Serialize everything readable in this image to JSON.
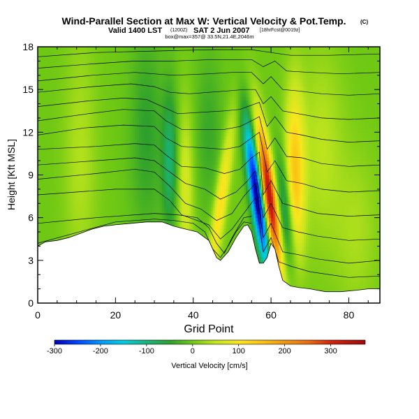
{
  "chart_data": {
    "type": "heatmap",
    "title": "Wind-Parallel Section at Max W: Vertical Velocity & Pot.Temp.",
    "title_badge": "(C)",
    "subtitle_main": "Valid 1400 LST",
    "subtitle_small1": "(1200Z)",
    "subtitle_date": "SAT 2 Jun 2007",
    "subtitle_small2": "[18hrFcst@0019z]",
    "subtitle3": "box@max=357@ 33.5N,21.4E,2046m",
    "xlabel": "Grid Point",
    "ylabel": "Height [Kft MSL]",
    "xlim": [
      0,
      88
    ],
    "ylim": [
      0,
      18
    ],
    "xticks": [
      0,
      20,
      40,
      60,
      80
    ],
    "xticklabels": [
      "0",
      "20",
      "40",
      "60",
      "80"
    ],
    "yticks": [
      0,
      3,
      6,
      9,
      12,
      15,
      18
    ],
    "yticklabels": [
      "0",
      "3",
      "6",
      "9",
      "12",
      "15",
      "18"
    ],
    "colorbar": {
      "label": "Vertical Velocity [cm/s]",
      "range": [
        -300,
        375
      ],
      "ticks": [
        -300,
        -200,
        -100,
        0,
        100,
        200,
        300
      ],
      "ticklabels": [
        "-300",
        "-200",
        "-100",
        "0",
        "100",
        "200",
        "300"
      ],
      "stops": [
        {
          "v": -300,
          "c": "#0000b4"
        },
        {
          "v": -250,
          "c": "#0046ff"
        },
        {
          "v": -200,
          "c": "#0096ff"
        },
        {
          "v": -150,
          "c": "#00cddc"
        },
        {
          "v": -100,
          "c": "#19b47d"
        },
        {
          "v": -50,
          "c": "#2da02d"
        },
        {
          "v": 0,
          "c": "#6ec814"
        },
        {
          "v": 50,
          "c": "#c3e61e"
        },
        {
          "v": 100,
          "c": "#fae61e"
        },
        {
          "v": 150,
          "c": "#fac314"
        },
        {
          "v": 200,
          "c": "#f0960f"
        },
        {
          "v": 250,
          "c": "#eb6e0f"
        },
        {
          "v": 300,
          "c": "#d2230f"
        },
        {
          "v": 375,
          "c": "#a00a0a"
        }
      ]
    },
    "terrain": [
      [
        0,
        4.0
      ],
      [
        2,
        4.3
      ],
      [
        5,
        4.4
      ],
      [
        8,
        4.6
      ],
      [
        11,
        4.9
      ],
      [
        14,
        5.2
      ],
      [
        17,
        5.4
      ],
      [
        20,
        5.5
      ],
      [
        24,
        5.6
      ],
      [
        28,
        5.7
      ],
      [
        32,
        5.7
      ],
      [
        35,
        5.4
      ],
      [
        38,
        5.2
      ],
      [
        41,
        5.0
      ],
      [
        44,
        4.4
      ],
      [
        46,
        3.2
      ],
      [
        47,
        3.0
      ],
      [
        49,
        3.6
      ],
      [
        51,
        4.6
      ],
      [
        53,
        5.4
      ],
      [
        54,
        5.5
      ],
      [
        55,
        5.0
      ],
      [
        56,
        3.8
      ],
      [
        57,
        2.8
      ],
      [
        58,
        2.8
      ],
      [
        59,
        3.2
      ],
      [
        60,
        4.2
      ],
      [
        61,
        3.8
      ],
      [
        62,
        2.6
      ],
      [
        63,
        1.6
      ],
      [
        65,
        1.2
      ],
      [
        67,
        1.1
      ],
      [
        70,
        1.0
      ],
      [
        74,
        0.8
      ],
      [
        78,
        0.8
      ],
      [
        82,
        0.9
      ],
      [
        85,
        1.0
      ],
      [
        88,
        1.0
      ]
    ],
    "w_features": [
      {
        "x": 56.5,
        "y": 7.5,
        "sx": 1.3,
        "sy": 3.5,
        "w": -330,
        "tilt": -0.5
      },
      {
        "x": 59.5,
        "y": 7.5,
        "sx": 1.3,
        "sy": 3.5,
        "w": 360,
        "tilt": -0.5
      },
      {
        "x": 66,
        "y": 8.5,
        "sx": 1.8,
        "sy": 4.5,
        "w": 150,
        "tilt": 0
      },
      {
        "x": 64,
        "y": 6,
        "sx": 1.5,
        "sy": 3,
        "w": -130,
        "tilt": -0.3
      },
      {
        "x": 47,
        "y": 7,
        "sx": 1.2,
        "sy": 4,
        "w": 120,
        "tilt": 0.5
      },
      {
        "x": 34,
        "y": 10,
        "sx": 1.4,
        "sy": 3.5,
        "w": -90,
        "tilt": 0
      },
      {
        "x": 38,
        "y": 8,
        "sx": 1.5,
        "sy": 4,
        "w": 70,
        "tilt": 0
      },
      {
        "x": 11,
        "y": 10,
        "sx": 3,
        "sy": 6,
        "w": 40,
        "tilt": 0
      },
      {
        "x": 28,
        "y": 12,
        "sx": 3,
        "sy": 5,
        "w": -50,
        "tilt": 0
      },
      {
        "x": 73,
        "y": 11,
        "sx": 4,
        "sy": 5,
        "w": 45,
        "tilt": 0
      },
      {
        "x": 82,
        "y": 5,
        "sx": 4,
        "sy": 4,
        "w": 35,
        "tilt": 0
      },
      {
        "x": 44,
        "y": 12,
        "sx": 2.5,
        "sy": 4,
        "w": -40,
        "tilt": 0
      }
    ],
    "theta_isolines": [
      [
        [
          0,
          4.2
        ],
        [
          20,
          5.7
        ],
        [
          30,
          5.9
        ],
        [
          35,
          5.8
        ],
        [
          40,
          5.6
        ],
        [
          43,
          5.0
        ],
        [
          45,
          3.8
        ],
        [
          47,
          3.2
        ],
        [
          49,
          4.0
        ],
        [
          51,
          5.0
        ],
        [
          53,
          5.7
        ],
        [
          55,
          5.6
        ]
      ],
      [
        [
          0,
          5.6
        ],
        [
          15,
          6.0
        ],
        [
          30,
          6.3
        ],
        [
          36,
          6.2
        ],
        [
          41,
          6.0
        ],
        [
          44,
          5.3
        ],
        [
          46,
          4.2
        ],
        [
          48,
          3.5
        ],
        [
          50,
          4.6
        ],
        [
          53,
          6.0
        ],
        [
          55,
          6.1
        ]
      ],
      [
        [
          0,
          7.6
        ],
        [
          20,
          8.0
        ],
        [
          30,
          8.0
        ],
        [
          34,
          7.2
        ],
        [
          37,
          6.2
        ],
        [
          41,
          5.8
        ],
        [
          44,
          5.5
        ],
        [
          47,
          4.5
        ],
        [
          50,
          5.2
        ],
        [
          53,
          6.3
        ],
        [
          56,
          7.4
        ],
        [
          58,
          3.6
        ],
        [
          60,
          4.6
        ],
        [
          62,
          2.9
        ],
        [
          65,
          2.6
        ],
        [
          70,
          2.2
        ],
        [
          80,
          1.8
        ],
        [
          88,
          1.9
        ]
      ],
      [
        [
          0,
          8.7
        ],
        [
          15,
          9.1
        ],
        [
          25,
          9.4
        ],
        [
          30,
          9.2
        ],
        [
          34,
          8.2
        ],
        [
          38,
          7.0
        ],
        [
          42,
          6.6
        ],
        [
          46,
          5.8
        ],
        [
          50,
          6.3
        ],
        [
          53,
          7.5
        ],
        [
          56,
          8.4
        ],
        [
          58,
          4.6
        ],
        [
          60,
          5.6
        ],
        [
          63,
          3.6
        ],
        [
          67,
          3.4
        ],
        [
          72,
          3.1
        ],
        [
          80,
          2.8
        ],
        [
          88,
          3.0
        ]
      ],
      [
        [
          0,
          9.7
        ],
        [
          15,
          10.0
        ],
        [
          25,
          10.2
        ],
        [
          30,
          10.0
        ],
        [
          34,
          9.2
        ],
        [
          38,
          8.4
        ],
        [
          43,
          8.0
        ],
        [
          47,
          7.3
        ],
        [
          51,
          7.8
        ],
        [
          54,
          8.6
        ],
        [
          56,
          9.3
        ],
        [
          58,
          6.0
        ],
        [
          60,
          7.0
        ],
        [
          63,
          5.3
        ],
        [
          67,
          5.0
        ],
        [
          72,
          4.7
        ],
        [
          80,
          4.4
        ],
        [
          88,
          4.5
        ]
      ],
      [
        [
          0,
          10.8
        ],
        [
          15,
          11.0
        ],
        [
          25,
          11.2
        ],
        [
          30,
          11.1
        ],
        [
          33,
          10.4
        ],
        [
          37,
          9.6
        ],
        [
          43,
          9.5
        ],
        [
          48,
          9.1
        ],
        [
          52,
          9.4
        ],
        [
          55,
          10.2
        ],
        [
          57,
          10.6
        ],
        [
          58,
          7.6
        ],
        [
          60,
          8.6
        ],
        [
          63,
          7.0
        ],
        [
          67,
          6.7
        ],
        [
          72,
          6.3
        ],
        [
          80,
          6.1
        ],
        [
          88,
          6.2
        ]
      ],
      [
        [
          0,
          11.8
        ],
        [
          12,
          12.3
        ],
        [
          22,
          12.5
        ],
        [
          30,
          12.4
        ],
        [
          33,
          11.6
        ],
        [
          37,
          11.0
        ],
        [
          43,
          10.9
        ],
        [
          48,
          10.8
        ],
        [
          52,
          11.0
        ],
        [
          55,
          11.6
        ],
        [
          57,
          12.0
        ],
        [
          59,
          9.2
        ],
        [
          61,
          10.0
        ],
        [
          64,
          8.6
        ],
        [
          68,
          8.4
        ],
        [
          73,
          8.0
        ],
        [
          80,
          7.8
        ],
        [
          88,
          7.9
        ]
      ],
      [
        [
          0,
          12.8
        ],
        [
          13,
          13.3
        ],
        [
          22,
          13.6
        ],
        [
          30,
          13.5
        ],
        [
          33,
          12.8
        ],
        [
          37,
          12.2
        ],
        [
          43,
          12.2
        ],
        [
          48,
          12.2
        ],
        [
          52,
          12.4
        ],
        [
          55,
          12.8
        ],
        [
          57,
          13.1
        ],
        [
          59,
          10.8
        ],
        [
          61,
          11.6
        ],
        [
          64,
          10.3
        ],
        [
          68,
          10.2
        ],
        [
          73,
          9.8
        ],
        [
          80,
          9.6
        ],
        [
          88,
          9.7
        ]
      ],
      [
        [
          0,
          13.8
        ],
        [
          13,
          14.2
        ],
        [
          22,
          14.4
        ],
        [
          28,
          14.3
        ],
        [
          32,
          13.8
        ],
        [
          36,
          13.3
        ],
        [
          42,
          13.4
        ],
        [
          48,
          13.5
        ],
        [
          52,
          13.6
        ],
        [
          55,
          13.9
        ],
        [
          57,
          14.1
        ],
        [
          59,
          12.4
        ],
        [
          61,
          13.1
        ],
        [
          64,
          12.0
        ],
        [
          68,
          11.8
        ],
        [
          73,
          11.5
        ],
        [
          80,
          11.3
        ],
        [
          88,
          11.4
        ]
      ],
      [
        [
          0,
          14.8
        ],
        [
          14,
          15.2
        ],
        [
          24,
          15.4
        ],
        [
          30,
          15.2
        ],
        [
          34,
          14.8
        ],
        [
          39,
          14.7
        ],
        [
          44,
          14.8
        ],
        [
          49,
          14.9
        ],
        [
          53,
          15.0
        ],
        [
          56,
          15.0
        ],
        [
          58,
          14.0
        ],
        [
          60,
          14.5
        ],
        [
          63,
          13.5
        ],
        [
          67,
          13.3
        ],
        [
          73,
          13.0
        ],
        [
          80,
          12.9
        ],
        [
          88,
          13.0
        ]
      ],
      [
        [
          0,
          15.6
        ],
        [
          14,
          16.0
        ],
        [
          25,
          16.2
        ],
        [
          35,
          16.0
        ],
        [
          44,
          16.1
        ],
        [
          50,
          16.2
        ],
        [
          55,
          16.2
        ],
        [
          58,
          15.4
        ],
        [
          60,
          15.9
        ],
        [
          63,
          15.0
        ],
        [
          67,
          14.9
        ],
        [
          73,
          14.7
        ],
        [
          80,
          14.6
        ],
        [
          88,
          14.7
        ]
      ],
      [
        [
          0,
          16.5
        ],
        [
          14,
          16.8
        ],
        [
          25,
          17.0
        ],
        [
          35,
          17.0
        ],
        [
          45,
          17.1
        ],
        [
          55,
          17.1
        ],
        [
          58,
          16.6
        ],
        [
          61,
          17.0
        ],
        [
          64,
          16.3
        ],
        [
          70,
          16.2
        ],
        [
          78,
          16.1
        ],
        [
          88,
          16.2
        ]
      ],
      [
        [
          0,
          17.3
        ],
        [
          15,
          17.6
        ],
        [
          30,
          17.7
        ],
        [
          45,
          17.8
        ],
        [
          55,
          17.8
        ],
        [
          60,
          17.6
        ],
        [
          65,
          17.4
        ],
        [
          75,
          17.4
        ],
        [
          88,
          17.5
        ]
      ]
    ]
  }
}
